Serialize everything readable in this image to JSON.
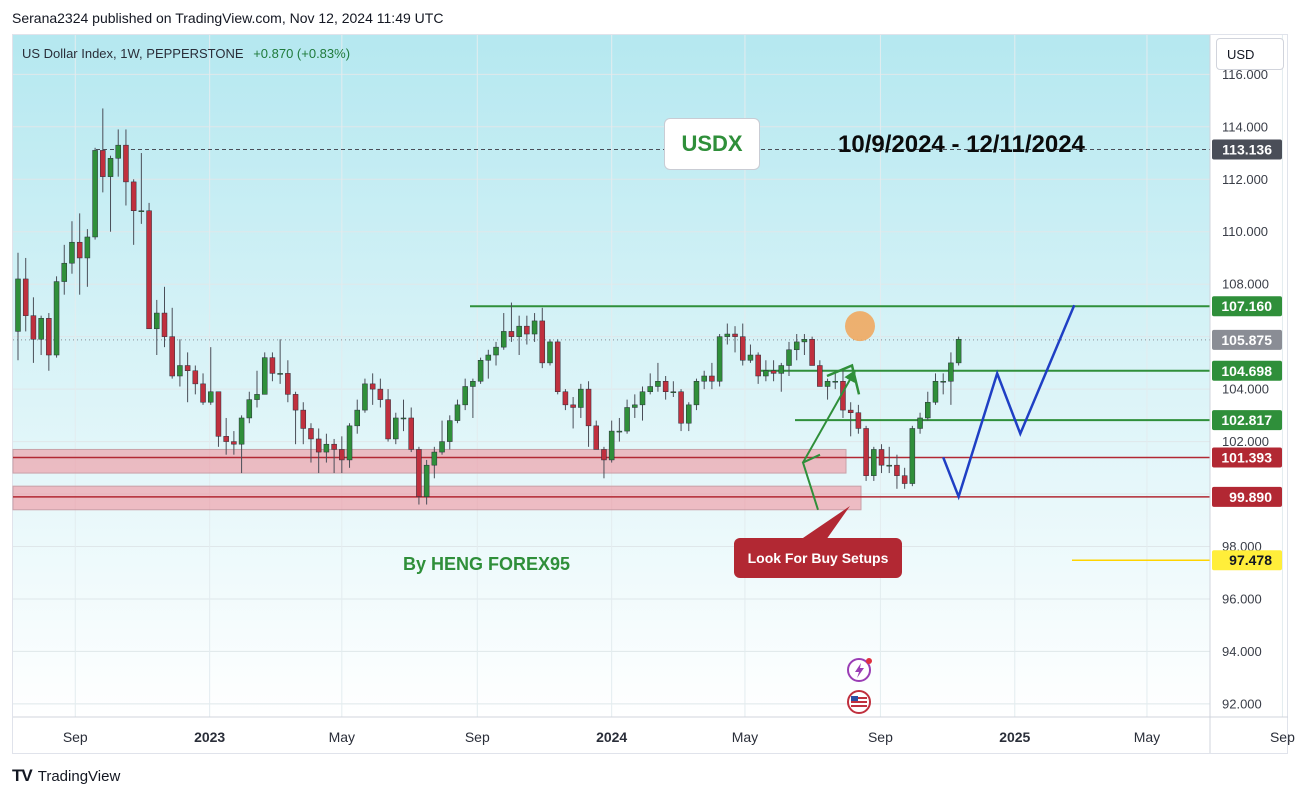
{
  "header": {
    "published_text": "Serana2324 published on TradingView.com, Nov 12, 2024 11:49 UTC"
  },
  "symbol_info": {
    "name": "US Dollar Index, 1W, PEPPERSTONE",
    "change": "+0.870 (+0.83%)"
  },
  "currency_button": "USD",
  "annotations": {
    "ticker_box": "USDX",
    "date_range": "10/9/2024 - 12/11/2024",
    "author": "By HENG FOREX95",
    "callout": "Look For Buy Setups"
  },
  "footer": {
    "brand": "TradingView",
    "logo": "TV"
  },
  "colors": {
    "green_level": "#2f8f3a",
    "red_level": "#b22833",
    "zone_fill": "#f08a96",
    "projection": "#1f3fc4",
    "current_price_tag": "#8a8d95",
    "highlight_tag": "#ffee3a",
    "up_candle": "#2f8f3a",
    "down_candle": "#c0303e",
    "marker_circle": "#f0a860"
  },
  "chart_data": {
    "type": "candlestick",
    "timeframe": "1W",
    "x_tick_labels": [
      "Sep",
      "2023",
      "May",
      "Sep",
      "2024",
      "May",
      "Sep",
      "2025",
      "May",
      "Sep"
    ],
    "y_tick_labels": [
      "116.000",
      "114.000",
      "112.000",
      "110.000",
      "108.000",
      "106.000",
      "104.000",
      "102.000",
      "100.000",
      "98.000",
      "96.000",
      "94.000",
      "92.000"
    ],
    "ylim": [
      91.5,
      117.5
    ],
    "price_levels": [
      {
        "label": "113.136",
        "value": 113.136,
        "style": "dashed-grey"
      },
      {
        "label": "107.160",
        "value": 107.16,
        "style": "green"
      },
      {
        "label": "105.875",
        "value": 105.875,
        "style": "current"
      },
      {
        "label": "104.698",
        "value": 104.698,
        "style": "green"
      },
      {
        "label": "102.817",
        "value": 102.817,
        "style": "green"
      },
      {
        "label": "101.393",
        "value": 101.393,
        "style": "red"
      },
      {
        "label": "99.890",
        "value": 99.89,
        "style": "red"
      },
      {
        "label": "97.478",
        "value": 97.478,
        "style": "yellow"
      }
    ],
    "support_zones": [
      [
        100.8,
        101.7
      ],
      [
        99.4,
        100.3
      ]
    ],
    "projection_path": [
      {
        "time": "2024-10-28",
        "price": 101.4
      },
      {
        "time": "2024-11-11",
        "price": 99.9
      },
      {
        "time": "2024-12-16",
        "price": 104.6
      },
      {
        "time": "2025-01-06",
        "price": 102.3
      },
      {
        "time": "2025-02-24",
        "price": 107.2
      }
    ],
    "candles": [
      [
        "2022-07-11",
        106.2,
        109.2,
        105.1,
        108.2
      ],
      [
        "2022-07-18",
        108.2,
        109.0,
        106.2,
        106.8
      ],
      [
        "2022-07-25",
        106.8,
        107.5,
        105.0,
        105.9
      ],
      [
        "2022-08-01",
        105.9,
        106.8,
        105.3,
        106.7
      ],
      [
        "2022-08-08",
        106.7,
        106.9,
        104.7,
        105.3
      ],
      [
        "2022-08-15",
        105.3,
        108.3,
        105.2,
        108.1
      ],
      [
        "2022-08-22",
        108.1,
        109.5,
        107.6,
        108.8
      ],
      [
        "2022-08-29",
        108.8,
        110.4,
        108.4,
        109.6
      ],
      [
        "2022-09-05",
        109.6,
        110.7,
        107.6,
        109.0
      ],
      [
        "2022-09-12",
        109.0,
        110.1,
        107.9,
        109.8
      ],
      [
        "2022-09-19",
        109.8,
        113.2,
        109.7,
        113.1
      ],
      [
        "2022-09-26",
        113.1,
        114.7,
        111.5,
        112.1
      ],
      [
        "2022-10-03",
        112.1,
        112.9,
        110.0,
        112.8
      ],
      [
        "2022-10-10",
        112.8,
        113.9,
        112.1,
        113.3
      ],
      [
        "2022-10-17",
        113.3,
        113.9,
        111.0,
        111.9
      ],
      [
        "2022-10-24",
        111.9,
        112.0,
        109.5,
        110.8
      ],
      [
        "2022-10-31",
        110.8,
        113.0,
        110.3,
        110.8
      ],
      [
        "2022-11-07",
        110.8,
        111.1,
        106.3,
        106.3
      ],
      [
        "2022-11-14",
        106.3,
        107.4,
        105.3,
        106.9
      ],
      [
        "2022-11-21",
        106.9,
        107.9,
        105.6,
        106.0
      ],
      [
        "2022-11-28",
        106.0,
        107.1,
        104.4,
        104.5
      ],
      [
        "2022-12-05",
        104.5,
        105.9,
        104.1,
        104.9
      ],
      [
        "2022-12-12",
        104.9,
        105.4,
        103.5,
        104.7
      ],
      [
        "2022-12-19",
        104.7,
        104.9,
        103.8,
        104.2
      ],
      [
        "2022-12-26",
        104.2,
        104.6,
        103.4,
        103.5
      ],
      [
        "2023-01-02",
        103.5,
        105.6,
        103.4,
        103.9
      ],
      [
        "2023-01-09",
        103.9,
        103.9,
        101.8,
        102.2
      ],
      [
        "2023-01-16",
        102.2,
        102.9,
        101.5,
        102.0
      ],
      [
        "2023-01-23",
        102.0,
        102.4,
        101.5,
        101.9
      ],
      [
        "2023-01-30",
        101.9,
        103.0,
        100.8,
        102.9
      ],
      [
        "2023-02-06",
        102.9,
        103.9,
        102.7,
        103.6
      ],
      [
        "2023-02-13",
        103.6,
        104.7,
        103.3,
        103.8
      ],
      [
        "2023-02-20",
        103.8,
        105.4,
        103.8,
        105.2
      ],
      [
        "2023-02-27",
        105.2,
        105.4,
        104.3,
        104.6
      ],
      [
        "2023-03-06",
        104.6,
        105.9,
        104.2,
        104.6
      ],
      [
        "2023-03-13",
        104.6,
        105.1,
        103.5,
        103.8
      ],
      [
        "2023-03-20",
        103.8,
        103.9,
        101.9,
        103.2
      ],
      [
        "2023-03-27",
        103.2,
        103.5,
        101.9,
        102.5
      ],
      [
        "2023-04-03",
        102.5,
        102.7,
        101.2,
        102.1
      ],
      [
        "2023-04-10",
        102.1,
        102.5,
        100.8,
        101.6
      ],
      [
        "2023-04-17",
        101.6,
        102.3,
        101.2,
        101.9
      ],
      [
        "2023-04-24",
        101.9,
        102.1,
        100.8,
        101.7
      ],
      [
        "2023-05-01",
        101.7,
        102.2,
        100.8,
        101.3
      ],
      [
        "2023-05-08",
        101.3,
        102.7,
        101.0,
        102.6
      ],
      [
        "2023-05-15",
        102.6,
        103.6,
        102.3,
        103.2
      ],
      [
        "2023-05-22",
        103.2,
        104.4,
        103.1,
        104.2
      ],
      [
        "2023-05-29",
        104.2,
        104.6,
        103.4,
        104.0
      ],
      [
        "2023-06-05",
        104.0,
        104.4,
        103.3,
        103.6
      ],
      [
        "2023-06-12",
        103.6,
        104.0,
        102.0,
        102.1
      ],
      [
        "2023-06-19",
        102.1,
        103.1,
        101.9,
        102.9
      ],
      [
        "2023-06-26",
        102.9,
        103.6,
        102.4,
        102.9
      ],
      [
        "2023-07-03",
        102.9,
        103.3,
        101.6,
        101.7
      ],
      [
        "2023-07-10",
        101.7,
        101.8,
        99.6,
        99.9
      ],
      [
        "2023-07-17",
        99.9,
        101.3,
        99.6,
        101.1
      ],
      [
        "2023-07-24",
        101.1,
        101.8,
        100.6,
        101.6
      ],
      [
        "2023-07-31",
        101.6,
        102.8,
        101.5,
        102.0
      ],
      [
        "2023-08-07",
        102.0,
        103.0,
        101.7,
        102.8
      ],
      [
        "2023-08-14",
        102.8,
        103.6,
        102.7,
        103.4
      ],
      [
        "2023-08-21",
        103.4,
        104.4,
        103.2,
        104.1
      ],
      [
        "2023-08-28",
        104.1,
        104.4,
        102.9,
        104.3
      ],
      [
        "2023-09-04",
        104.3,
        105.2,
        104.2,
        105.1
      ],
      [
        "2023-09-11",
        105.1,
        105.5,
        104.4,
        105.3
      ],
      [
        "2023-09-18",
        105.3,
        105.8,
        104.9,
        105.6
      ],
      [
        "2023-09-25",
        105.6,
        106.9,
        105.5,
        106.2
      ],
      [
        "2023-10-02",
        106.2,
        107.3,
        105.8,
        106.0
      ],
      [
        "2023-10-09",
        106.0,
        106.8,
        105.3,
        106.4
      ],
      [
        "2023-10-16",
        106.4,
        106.8,
        105.7,
        106.1
      ],
      [
        "2023-10-23",
        106.1,
        106.9,
        105.8,
        106.6
      ],
      [
        "2023-10-30",
        106.6,
        107.1,
        104.8,
        105.0
      ],
      [
        "2023-11-06",
        105.0,
        105.9,
        104.9,
        105.8
      ],
      [
        "2023-11-13",
        105.8,
        105.9,
        103.8,
        103.9
      ],
      [
        "2023-11-20",
        103.9,
        104.0,
        103.2,
        103.4
      ],
      [
        "2023-11-27",
        103.4,
        103.7,
        102.5,
        103.3
      ],
      [
        "2023-12-04",
        103.3,
        104.2,
        102.9,
        104.0
      ],
      [
        "2023-12-11",
        104.0,
        104.3,
        101.8,
        102.6
      ],
      [
        "2023-12-18",
        102.6,
        102.8,
        101.7,
        101.7
      ],
      [
        "2023-12-25",
        101.7,
        101.8,
        100.6,
        101.3
      ],
      [
        "2024-01-01",
        101.3,
        102.8,
        101.2,
        102.4
      ],
      [
        "2024-01-08",
        102.4,
        102.9,
        102.0,
        102.4
      ],
      [
        "2024-01-15",
        102.4,
        103.6,
        102.3,
        103.3
      ],
      [
        "2024-01-22",
        103.3,
        103.8,
        102.9,
        103.4
      ],
      [
        "2024-01-29",
        103.4,
        104.1,
        102.8,
        103.9
      ],
      [
        "2024-02-05",
        103.9,
        104.6,
        103.8,
        104.1
      ],
      [
        "2024-02-12",
        104.1,
        105.0,
        103.9,
        104.3
      ],
      [
        "2024-02-19",
        104.3,
        104.5,
        103.6,
        103.9
      ],
      [
        "2024-02-26",
        103.9,
        104.3,
        103.7,
        103.9
      ],
      [
        "2024-03-04",
        103.9,
        104.0,
        102.4,
        102.7
      ],
      [
        "2024-03-11",
        102.7,
        103.5,
        102.4,
        103.4
      ],
      [
        "2024-03-18",
        103.4,
        104.4,
        103.2,
        104.3
      ],
      [
        "2024-03-25",
        104.3,
        104.7,
        104.0,
        104.5
      ],
      [
        "2024-04-01",
        104.5,
        105.0,
        104.0,
        104.3
      ],
      [
        "2024-04-08",
        104.3,
        106.1,
        104.1,
        106.0
      ],
      [
        "2024-04-15",
        106.0,
        106.5,
        105.7,
        106.1
      ],
      [
        "2024-04-22",
        106.1,
        106.4,
        105.4,
        106.0
      ],
      [
        "2024-04-29",
        106.0,
        106.5,
        104.9,
        105.1
      ],
      [
        "2024-05-06",
        105.1,
        105.7,
        105.0,
        105.3
      ],
      [
        "2024-05-13",
        105.3,
        105.4,
        104.2,
        104.5
      ],
      [
        "2024-05-20",
        104.5,
        105.1,
        104.3,
        104.7
      ],
      [
        "2024-05-27",
        104.7,
        105.1,
        104.3,
        104.6
      ],
      [
        "2024-06-03",
        104.6,
        105.0,
        103.9,
        104.9
      ],
      [
        "2024-06-10",
        104.9,
        105.8,
        104.5,
        105.5
      ],
      [
        "2024-06-17",
        105.5,
        106.1,
        105.1,
        105.8
      ],
      [
        "2024-06-24",
        105.8,
        106.1,
        105.3,
        105.9
      ],
      [
        "2024-07-01",
        105.9,
        106.0,
        104.9,
        104.9
      ],
      [
        "2024-07-08",
        104.9,
        105.1,
        104.1,
        104.1
      ],
      [
        "2024-07-15",
        104.1,
        104.4,
        103.6,
        104.3
      ],
      [
        "2024-07-22",
        104.3,
        104.6,
        104.0,
        104.3
      ],
      [
        "2024-07-29",
        104.3,
        104.8,
        102.9,
        103.2
      ],
      [
        "2024-08-05",
        103.2,
        103.5,
        102.2,
        103.1
      ],
      [
        "2024-08-12",
        103.1,
        103.4,
        102.3,
        102.5
      ],
      [
        "2024-08-19",
        102.5,
        102.6,
        100.5,
        100.7
      ],
      [
        "2024-08-26",
        100.7,
        101.8,
        100.5,
        101.7
      ],
      [
        "2024-09-02",
        101.7,
        101.9,
        100.8,
        101.1
      ],
      [
        "2024-09-09",
        101.1,
        101.8,
        100.8,
        101.1
      ],
      [
        "2024-09-16",
        101.1,
        101.5,
        100.2,
        100.7
      ],
      [
        "2024-09-23",
        100.7,
        101.0,
        100.2,
        100.4
      ],
      [
        "2024-09-30",
        100.4,
        102.6,
        100.3,
        102.5
      ],
      [
        "2024-10-07",
        102.5,
        103.1,
        102.3,
        102.9
      ],
      [
        "2024-10-14",
        102.9,
        103.9,
        102.8,
        103.5
      ],
      [
        "2024-10-21",
        103.5,
        104.6,
        103.4,
        104.3
      ],
      [
        "2024-10-28",
        104.3,
        104.6,
        103.8,
        104.3
      ],
      [
        "2024-11-04",
        104.3,
        105.4,
        103.4,
        105.0
      ],
      [
        "2024-11-11",
        105.0,
        106.0,
        104.9,
        105.9
      ]
    ]
  }
}
